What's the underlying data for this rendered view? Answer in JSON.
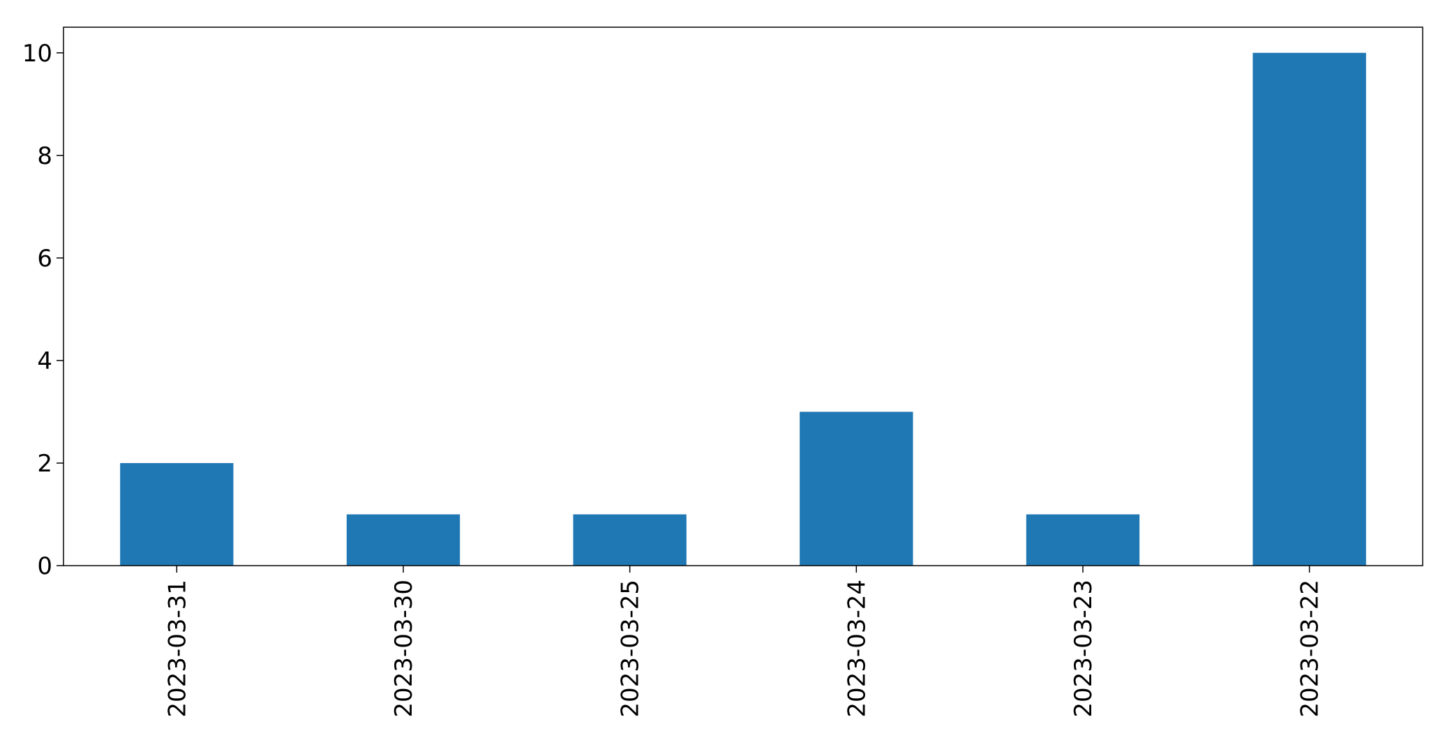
{
  "chart_data": {
    "type": "bar",
    "title": "",
    "xlabel": "",
    "ylabel": "",
    "categories": [
      "2023-03-31",
      "2023-03-30",
      "2023-03-25",
      "2023-03-24",
      "2023-03-23",
      "2023-03-22"
    ],
    "values": [
      2,
      1,
      1,
      3,
      1,
      10
    ],
    "ylim": [
      0,
      10.5
    ],
    "yticks": [
      0,
      2,
      4,
      6,
      8,
      10
    ],
    "grid": false,
    "legend": "none",
    "bar_color": "#1f77b4",
    "xtick_rotation": "vertical"
  }
}
